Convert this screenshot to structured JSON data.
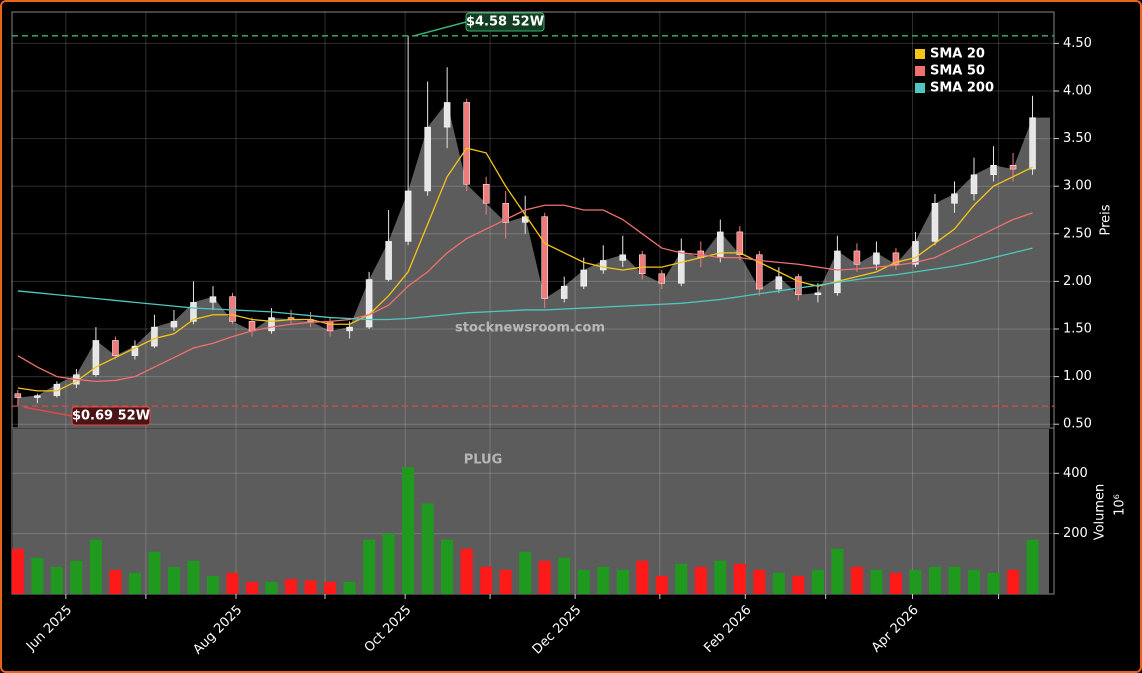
{
  "chart_data": [
    {
      "type": "candlestick",
      "watermark": "stocknewsroom.com",
      "symbol": "PLUG",
      "ylabel": "Preis",
      "open": [
        0.82,
        0.78,
        0.8,
        0.92,
        1.02,
        1.38,
        1.22,
        1.32,
        1.52,
        1.58,
        1.78,
        1.84,
        1.58,
        1.48,
        1.62,
        1.6,
        1.58,
        1.48,
        1.52,
        2.02,
        2.42,
        2.95,
        3.62,
        3.88,
        3.02,
        2.82,
        2.62,
        2.68,
        1.82,
        1.95,
        2.12,
        2.22,
        2.28,
        2.08,
        1.98,
        2.32,
        2.25,
        2.52,
        2.28,
        1.92,
        2.05,
        1.86,
        1.88,
        2.32,
        2.18,
        2.3,
        2.18,
        2.42,
        2.82,
        2.92,
        3.12,
        3.22,
        3.18
      ],
      "high": [
        0.86,
        0.82,
        0.95,
        1.08,
        1.52,
        1.42,
        1.38,
        1.65,
        1.7,
        2.0,
        1.95,
        1.88,
        1.62,
        1.72,
        1.7,
        1.68,
        1.62,
        1.58,
        2.1,
        2.75,
        4.58,
        4.1,
        4.25,
        3.92,
        3.1,
        2.95,
        2.9,
        2.72,
        2.05,
        2.25,
        2.38,
        2.48,
        2.32,
        2.12,
        2.45,
        2.42,
        2.65,
        2.58,
        2.32,
        2.15,
        2.08,
        1.98,
        2.48,
        2.4,
        2.42,
        2.35,
        2.52,
        2.92,
        3.05,
        3.3,
        3.42,
        3.35,
        3.95
      ],
      "low": [
        0.69,
        0.72,
        0.78,
        0.88,
        1.0,
        1.18,
        1.18,
        1.3,
        1.48,
        1.55,
        1.7,
        1.55,
        1.42,
        1.45,
        1.55,
        1.52,
        1.42,
        1.4,
        1.5,
        2.0,
        2.38,
        2.9,
        3.4,
        2.95,
        2.7,
        2.45,
        2.5,
        1.72,
        1.78,
        1.92,
        2.08,
        2.15,
        2.02,
        1.92,
        1.95,
        2.15,
        2.2,
        2.22,
        1.85,
        1.88,
        1.8,
        1.78,
        1.85,
        2.1,
        2.12,
        2.12,
        2.15,
        2.38,
        2.72,
        2.85,
        3.05,
        3.05,
        3.12
      ],
      "close": [
        0.78,
        0.8,
        0.92,
        1.02,
        1.38,
        1.22,
        1.32,
        1.52,
        1.58,
        1.78,
        1.84,
        1.58,
        1.48,
        1.62,
        1.6,
        1.58,
        1.48,
        1.52,
        2.02,
        2.42,
        2.95,
        3.62,
        3.88,
        3.02,
        2.82,
        2.62,
        2.68,
        1.82,
        1.95,
        2.12,
        2.22,
        2.28,
        2.08,
        1.98,
        2.32,
        2.25,
        2.52,
        2.28,
        1.92,
        2.05,
        1.86,
        1.88,
        2.32,
        2.18,
        2.3,
        2.18,
        2.42,
        2.82,
        2.92,
        3.12,
        3.22,
        3.18,
        3.72
      ],
      "up_color": "#e6e6e6",
      "down_color": "#f07b7b",
      "area_color": "#5c5c5c",
      "series": [
        {
          "name": "SMA 20",
          "color": "#f5c518",
          "values": [
            0.88,
            0.85,
            0.85,
            0.95,
            1.1,
            1.2,
            1.3,
            1.4,
            1.45,
            1.6,
            1.65,
            1.65,
            1.6,
            1.58,
            1.6,
            1.6,
            1.55,
            1.55,
            1.65,
            1.85,
            2.1,
            2.6,
            3.1,
            3.4,
            3.35,
            3.0,
            2.7,
            2.4,
            2.3,
            2.2,
            2.15,
            2.12,
            2.15,
            2.15,
            2.2,
            2.25,
            2.3,
            2.3,
            2.2,
            2.1,
            2.0,
            1.95,
            2.0,
            2.05,
            2.1,
            2.2,
            2.25,
            2.4,
            2.55,
            2.8,
            3.0,
            3.1,
            3.2
          ]
        },
        {
          "name": "SMA 50",
          "color": "#f07070",
          "values": [
            1.22,
            1.1,
            1.0,
            0.97,
            0.95,
            0.96,
            1.0,
            1.1,
            1.2,
            1.3,
            1.35,
            1.42,
            1.48,
            1.52,
            1.55,
            1.57,
            1.58,
            1.6,
            1.65,
            1.75,
            1.95,
            2.1,
            2.3,
            2.45,
            2.55,
            2.65,
            2.75,
            2.8,
            2.8,
            2.75,
            2.75,
            2.65,
            2.5,
            2.35,
            2.3,
            2.28,
            2.25,
            2.25,
            2.22,
            2.2,
            2.18,
            2.15,
            2.12,
            2.13,
            2.15,
            2.17,
            2.2,
            2.25,
            2.35,
            2.45,
            2.55,
            2.65,
            2.72
          ]
        },
        {
          "name": "SMA 200",
          "color": "#4fc7c0",
          "values": [
            1.9,
            1.88,
            1.86,
            1.84,
            1.82,
            1.8,
            1.78,
            1.76,
            1.74,
            1.72,
            1.71,
            1.7,
            1.69,
            1.68,
            1.66,
            1.64,
            1.62,
            1.61,
            1.6,
            1.6,
            1.61,
            1.63,
            1.65,
            1.67,
            1.68,
            1.69,
            1.7,
            1.7,
            1.71,
            1.72,
            1.73,
            1.74,
            1.75,
            1.76,
            1.77,
            1.79,
            1.81,
            1.84,
            1.87,
            1.9,
            1.93,
            1.96,
            1.99,
            2.02,
            2.05,
            2.07,
            2.1,
            2.13,
            2.16,
            2.2,
            2.25,
            2.3,
            2.35
          ]
        }
      ],
      "legend": "upper right",
      "grid": true,
      "ylim": [
        0.46,
        4.83
      ],
      "yticks": [
        {
          "value": 0.5,
          "label": "0.50"
        },
        {
          "value": 1.0,
          "label": "1.00"
        },
        {
          "value": 1.5,
          "label": "1.50"
        },
        {
          "value": 2.0,
          "label": "2.00"
        },
        {
          "value": 2.5,
          "label": "2.50"
        },
        {
          "value": 3.0,
          "label": "3.00"
        },
        {
          "value": 3.5,
          "label": "3.50"
        },
        {
          "value": 4.0,
          "label": "4.00"
        },
        {
          "value": 4.5,
          "label": "4.50"
        }
      ],
      "xlim": [
        -0.3,
        53.1
      ],
      "xticks": [
        {
          "value": 2.46,
          "label": "Jun 2025"
        },
        {
          "value": 6.56,
          "label": null
        },
        {
          "value": 11.18,
          "label": "Aug 2025"
        },
        {
          "value": 15.74,
          "label": null
        },
        {
          "value": 19.85,
          "label": "Oct 2025"
        },
        {
          "value": 24.2,
          "label": null
        },
        {
          "value": 28.56,
          "label": "Dec 2025"
        },
        {
          "value": 32.9,
          "label": null
        },
        {
          "value": 37.28,
          "label": "Feb 2026"
        },
        {
          "value": 41.4,
          "label": null
        },
        {
          "value": 45.85,
          "label": "Apr 2026"
        },
        {
          "value": 50.26,
          "label": null
        }
      ],
      "annotations": [
        {
          "value": 4.58,
          "label": "$4.58 52W",
          "color": "#3cb371"
        },
        {
          "value": 0.69,
          "label": "$0.69 52W",
          "color": "#e04848"
        }
      ]
    },
    {
      "type": "bar",
      "ylabel": "Volumen",
      "scale_label": "10⁶",
      "values": [
        150,
        120,
        90,
        110,
        180,
        80,
        70,
        140,
        90,
        110,
        60,
        70,
        40,
        40,
        50,
        45,
        40,
        40,
        180,
        200,
        420,
        300,
        180,
        150,
        90,
        80,
        140,
        110,
        120,
        80,
        90,
        80,
        110,
        60,
        100,
        90,
        110,
        100,
        80,
        70,
        60,
        80,
        150,
        90,
        80,
        70,
        80,
        90,
        90,
        80,
        70,
        80,
        180
      ],
      "up_color": "#1f9a1f",
      "down_color": "#ff1a1a",
      "ylim": [
        0,
        550
      ],
      "yticks": [
        200,
        400
      ]
    }
  ]
}
